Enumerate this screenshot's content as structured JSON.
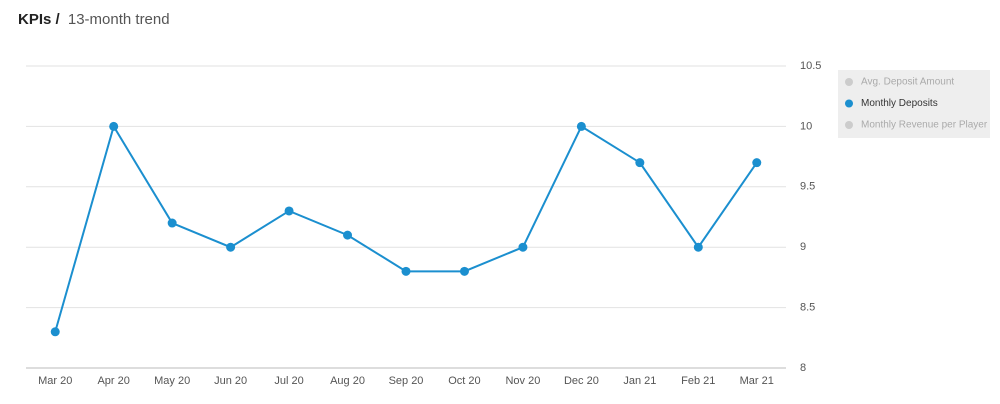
{
  "chart_data": {
    "type": "line",
    "title": "KPIs /",
    "subtitle": "13-month trend",
    "categories": [
      "Mar 20",
      "Apr 20",
      "May 20",
      "Jun 20",
      "Jul 20",
      "Aug 20",
      "Sep 20",
      "Oct 20",
      "Nov 20",
      "Dec 20",
      "Jan 21",
      "Feb 21",
      "Mar 21"
    ],
    "series": [
      {
        "name": "Avg. Deposit Amount",
        "color": "#cccccc",
        "visible": false
      },
      {
        "name": "Monthly Deposits",
        "color": "#1b8fcf",
        "visible": true,
        "values": [
          8.3,
          10,
          9.2,
          9,
          9.3,
          9.1,
          8.8,
          8.8,
          9,
          10,
          9.7,
          9,
          9.7
        ]
      },
      {
        "name": "Monthly Revenue per Player",
        "color": "#cccccc",
        "visible": false
      }
    ],
    "ylim": [
      8,
      10.5
    ],
    "yticks": [
      8,
      8.5,
      9,
      9.5,
      10,
      10.5
    ],
    "grid": true,
    "y_axis_side": "right",
    "legend": "top-right"
  }
}
